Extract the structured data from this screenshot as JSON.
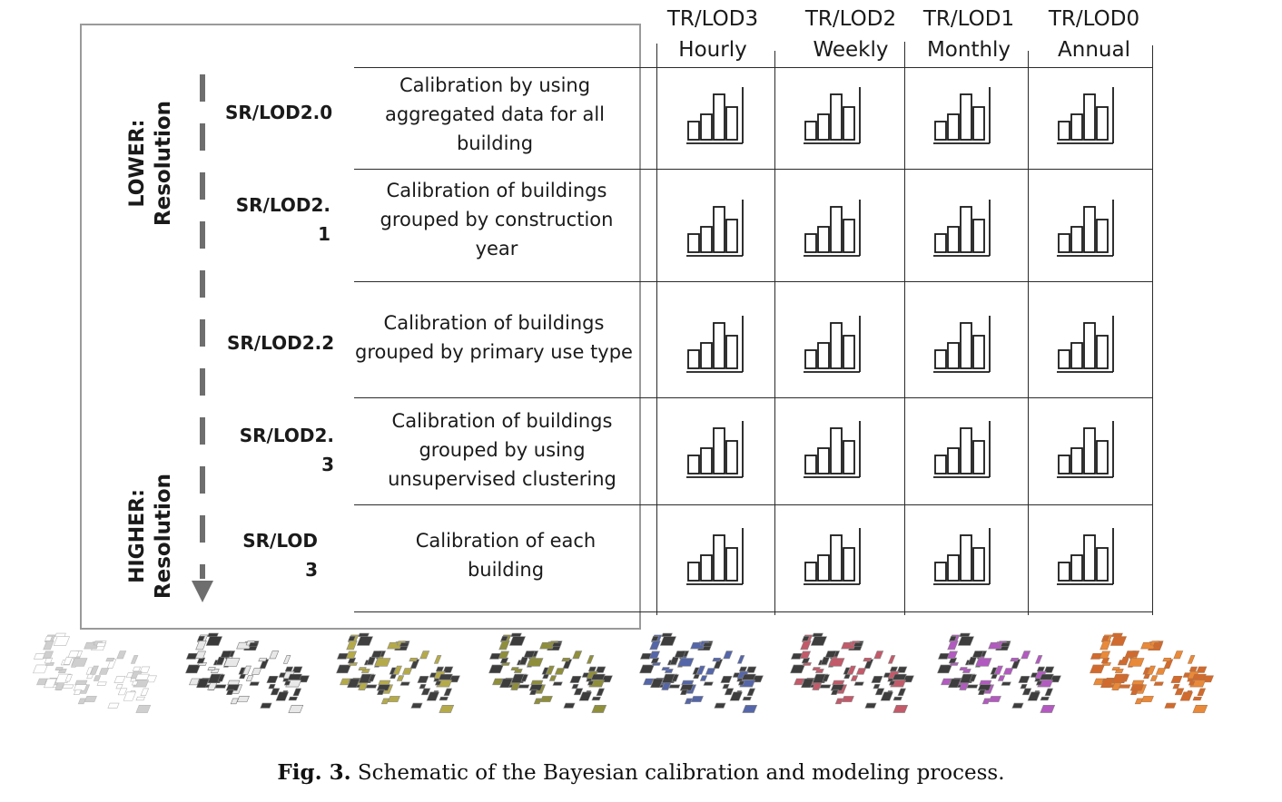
{
  "figure": {
    "caption_label": "Fig. 3.",
    "caption_text": " Schematic of the Bayesian calibration and modeling process."
  },
  "temporal_columns": [
    {
      "lod": "TR/LOD3",
      "freq": "Hourly"
    },
    {
      "lod": "TR/LOD2",
      "freq": "Weekly"
    },
    {
      "lod": "TR/LOD1",
      "freq": "Monthly"
    },
    {
      "lod": "TR/LOD0",
      "freq": "Annual"
    }
  ],
  "spatial_rows": [
    {
      "label_line1": "SR/LOD2.0",
      "label_line2": "",
      "desc": [
        "Calibration by using",
        "aggregated data for all",
        "building"
      ]
    },
    {
      "label_line1": "SR/LOD2.",
      "label_line2": "1",
      "desc": [
        "Calibration of buildings",
        "grouped by construction",
        "year"
      ]
    },
    {
      "label_line1": "SR/LOD2.2",
      "label_line2": "",
      "desc": [
        "Calibration of buildings",
        "grouped by primary use type"
      ]
    },
    {
      "label_line1": "SR/LOD2.",
      "label_line2": "3",
      "desc": [
        "Calibration of buildings",
        "grouped by using",
        "unsupervised clustering"
      ]
    },
    {
      "label_line1": "SR/LOD",
      "label_line2": "3",
      "desc": [
        "Calibration of each",
        "building"
      ]
    }
  ],
  "resolution_axis": {
    "top": {
      "line1": "LOWER:",
      "line2": "Resolution"
    },
    "bottom": {
      "line1": "HIGHER:",
      "line2": "Resolution"
    }
  },
  "cell_icon": "bar-chart-icon",
  "map_thumbnails": [
    {
      "name": "map-outline",
      "fill": "#ffffff",
      "stroke": "#b8b8b8",
      "accent": "#cfcfcf"
    },
    {
      "name": "map-dark",
      "fill": "#3a3a3a",
      "stroke": "#777777",
      "accent": "#e8e8e8"
    },
    {
      "name": "map-olive",
      "fill": "#3f3f3f",
      "stroke": "#888888",
      "accent": "#b5aa4a"
    },
    {
      "name": "map-olive-green",
      "fill": "#3c3c3c",
      "stroke": "#888888",
      "accent": "#8f8e3b"
    },
    {
      "name": "map-blue",
      "fill": "#3d3d3d",
      "stroke": "#888888",
      "accent": "#5566a8"
    },
    {
      "name": "map-mixed",
      "fill": "#3d3d3d",
      "stroke": "#888888",
      "accent": "#c25a6a"
    },
    {
      "name": "map-purple",
      "fill": "#3d3d3d",
      "stroke": "#888888",
      "accent": "#b25ac0"
    },
    {
      "name": "map-orange",
      "fill": "#d06a2e",
      "stroke": "#b0744a",
      "accent": "#e88a3a"
    }
  ]
}
